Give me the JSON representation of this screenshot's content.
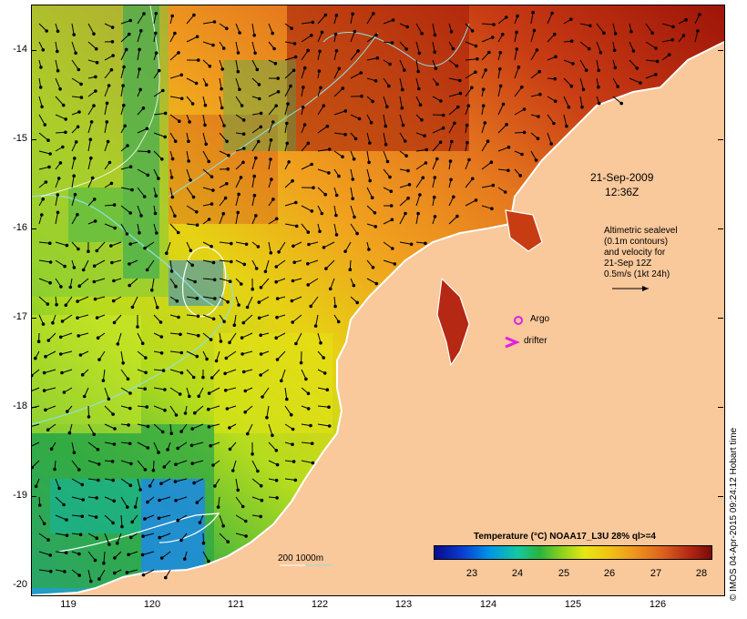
{
  "map": {
    "date_line1": "21-Sep-2009",
    "date_line2": "12:36Z",
    "altimetry_note": [
      "Altimetric sealevel",
      "(0.1m contours)",
      "and velocity for",
      "21-Sep 12Z",
      "0.5m/s (1kt 24h)"
    ],
    "legend_argo": "Argo",
    "legend_drifter": "drifter",
    "scale_label": "200  1000m",
    "colorbar_title": "Temperature (°C) NOAA17_L3U 28% ql>=4",
    "colorbar_ticks": [
      "23",
      "24",
      "25",
      "26",
      "27",
      "28"
    ],
    "lat_ticks": [
      "-14",
      "-15",
      "-16",
      "-17",
      "-18",
      "-19",
      "-20"
    ],
    "lon_ticks": [
      "119",
      "120",
      "121",
      "122",
      "123",
      "124",
      "125",
      "126"
    ],
    "credit": "© IMOS 04-Apr-2015 09:24:12 Hobart time",
    "colors": {
      "land": "#f9c89b",
      "coast": "#ffffff",
      "argo": "#e020e0",
      "drifter": "#e020e0",
      "contour": "#8fe0e0",
      "sea_warm": "#b42814",
      "sea_mid": "#f0961e",
      "sea_cool": "#e6e614",
      "sea_green": "#28b43c",
      "sea_blue": "#0096e6"
    }
  }
}
